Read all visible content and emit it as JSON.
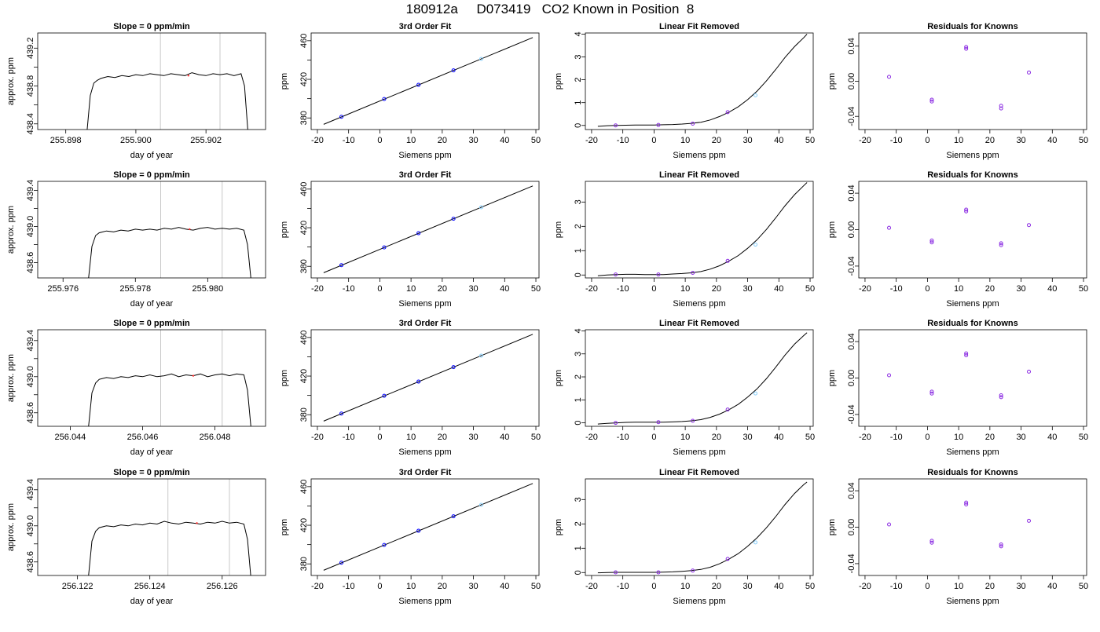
{
  "figure": {
    "title": "180912a     D073419   CO2 Known in Position  8"
  },
  "colors": {
    "axis": "#000000",
    "trace": "#000000",
    "window_marker": "#c8c8c8",
    "fit_line": "#000000",
    "known_point": "#0000ff",
    "residual_point": "#8a2be2",
    "highlight_point": "#87cefa",
    "accent_point": "#ff3333"
  },
  "chart_data": [
    {
      "type": "line",
      "row": 1,
      "panel": "trace",
      "title": "Slope =  0  ppm/min",
      "xlabel": "day of year",
      "ylabel": "approx. ppm",
      "xlim": [
        255.8972,
        255.9037
      ],
      "ylim": [
        438.34,
        439.36
      ],
      "xticks": [
        255.898,
        255.9,
        255.902
      ],
      "xtick_labels": [
        "255.898",
        "255.900",
        "255.902"
      ],
      "yticks": [
        438.4,
        438.6,
        438.8,
        439.0,
        439.2
      ],
      "ytick_labels": [
        "438.4",
        "",
        "438.8",
        "",
        "439.2"
      ],
      "markers": [
        255.9007,
        255.9024
      ],
      "accent_x": 255.9015,
      "x": [
        255.8986,
        255.8987,
        255.8988,
        255.8989,
        255.899,
        255.8992,
        255.8994,
        255.8996,
        255.8998,
        255.9,
        255.9002,
        255.9004,
        255.9006,
        255.9008,
        255.901,
        255.9012,
        255.9014,
        255.9016,
        255.9018,
        255.902,
        255.9022,
        255.9024,
        255.9026,
        255.9028,
        255.903,
        255.9031,
        255.9032
      ],
      "y": [
        438.3,
        438.7,
        438.83,
        438.86,
        438.88,
        438.9,
        438.89,
        438.91,
        438.9,
        438.92,
        438.91,
        438.93,
        438.92,
        438.91,
        438.93,
        438.92,
        438.91,
        438.94,
        438.92,
        438.91,
        438.93,
        438.92,
        438.93,
        438.91,
        438.93,
        438.8,
        438.3
      ]
    },
    {
      "type": "scatter",
      "row": 1,
      "panel": "fit",
      "title": "3rd Order Fit",
      "xlabel": "Siemens ppm",
      "ylabel": "ppm",
      "xlim": [
        -22,
        51
      ],
      "ylim": [
        368,
        468
      ],
      "xticks": [
        -20,
        -10,
        0,
        10,
        20,
        30,
        40,
        50
      ],
      "yticks": [
        380,
        400,
        420,
        440,
        460
      ],
      "ytick_labels": [
        "380",
        "",
        "420",
        "",
        "460"
      ],
      "line_x": [
        -18,
        49
      ],
      "line_y": [
        373.4,
        463.3
      ],
      "x": [
        -12.3,
        1.4,
        12.4,
        23.6,
        32.5
      ],
      "y": [
        381.2,
        399.6,
        414.3,
        429.3,
        441.2
      ],
      "highlight": [
        4
      ]
    },
    {
      "type": "scatter",
      "row": 1,
      "panel": "linear-removed",
      "title": "Linear Fit Removed",
      "xlabel": "Siemens ppm",
      "ylabel": "ppm",
      "xlim": [
        -22,
        51
      ],
      "ylim": [
        -0.18,
        4.05
      ],
      "xticks": [
        -20,
        -10,
        0,
        10,
        20,
        30,
        40,
        50
      ],
      "yticks": [
        0,
        1,
        2,
        3,
        4
      ],
      "curve_x": [
        -18,
        -15,
        -12,
        -9,
        -6,
        -3,
        0,
        3,
        6,
        9,
        12,
        15,
        18,
        21,
        24,
        27,
        30,
        33,
        36,
        39,
        42,
        45,
        48,
        49
      ],
      "curve_y": [
        -0.04,
        -0.01,
        0.0,
        0.01,
        0.02,
        0.02,
        0.02,
        0.03,
        0.04,
        0.06,
        0.09,
        0.14,
        0.24,
        0.39,
        0.58,
        0.82,
        1.13,
        1.5,
        1.95,
        2.45,
        2.98,
        3.45,
        3.85,
        4.0
      ],
      "x": [
        -12.3,
        1.4,
        12.4,
        23.6,
        32.5
      ],
      "y": [
        0.0,
        0.02,
        0.08,
        0.58,
        1.32
      ],
      "highlight": [
        4
      ]
    },
    {
      "type": "scatter",
      "row": 1,
      "panel": "residuals",
      "title": "Residuals for Knowns",
      "xlabel": "Siemens ppm",
      "ylabel": "ppm",
      "xlim": [
        -22,
        51
      ],
      "ylim": [
        -0.055,
        0.055
      ],
      "xticks": [
        -20,
        -10,
        0,
        10,
        20,
        30,
        40,
        50
      ],
      "yticks": [
        -0.04,
        0.0,
        0.04
      ],
      "ytick_labels": [
        "-0.04",
        "0.00",
        "0.04"
      ],
      "x": [
        -12.3,
        1.4,
        1.4,
        12.4,
        12.4,
        23.6,
        23.6,
        32.5
      ],
      "y": [
        0.005,
        -0.021,
        -0.023,
        0.039,
        0.037,
        -0.028,
        -0.031,
        0.01
      ]
    },
    {
      "type": "line",
      "row": 2,
      "panel": "trace",
      "title": "Slope =  0  ppm/min",
      "xlabel": "day of year",
      "ylabel": "approx. ppm",
      "xlim": [
        255.9753,
        255.9816
      ],
      "ylim": [
        438.43,
        439.5
      ],
      "xticks": [
        255.976,
        255.978,
        255.98
      ],
      "xtick_labels": [
        "255.976",
        "255.978",
        "255.980"
      ],
      "yticks": [
        438.6,
        438.8,
        439.0,
        439.2,
        439.4
      ],
      "ytick_labels": [
        "438.6",
        "",
        "439.0",
        "",
        "439.4"
      ],
      "markers": [
        255.9787,
        255.9804
      ],
      "accent_x": 255.9795,
      "x": [
        255.9767,
        255.9768,
        255.9769,
        255.977,
        255.9772,
        255.9774,
        255.9776,
        255.9778,
        255.978,
        255.9782,
        255.9784,
        255.9786,
        255.9788,
        255.979,
        255.9792,
        255.9794,
        255.9796,
        255.9798,
        255.98,
        255.9802,
        255.9804,
        255.9806,
        255.9808,
        255.981,
        255.9811,
        255.9812
      ],
      "y": [
        438.4,
        438.78,
        438.9,
        438.93,
        438.95,
        438.94,
        438.96,
        438.95,
        438.97,
        438.96,
        438.97,
        438.96,
        438.98,
        438.97,
        438.99,
        438.97,
        438.96,
        438.98,
        438.99,
        438.97,
        438.98,
        438.97,
        438.98,
        438.96,
        438.8,
        438.4
      ]
    },
    {
      "type": "scatter",
      "row": 2,
      "panel": "fit",
      "title": "3rd Order Fit",
      "xlabel": "Siemens ppm",
      "ylabel": "ppm",
      "xlim": [
        -22,
        51
      ],
      "ylim": [
        368,
        468
      ],
      "xticks": [
        -20,
        -10,
        0,
        10,
        20,
        30,
        40,
        50
      ],
      "yticks": [
        380,
        400,
        420,
        440,
        460
      ],
      "ytick_labels": [
        "380",
        "",
        "420",
        "",
        "460"
      ],
      "line_x": [
        -18,
        49
      ],
      "line_y": [
        373.4,
        463.3
      ],
      "x": [
        -12.3,
        1.4,
        12.4,
        23.6,
        32.5
      ],
      "y": [
        381.2,
        399.6,
        414.3,
        429.3,
        441.2
      ],
      "highlight": [
        4
      ]
    },
    {
      "type": "scatter",
      "row": 2,
      "panel": "linear-removed",
      "title": "Linear Fit Removed",
      "xlabel": "Siemens ppm",
      "ylabel": "ppm",
      "xlim": [
        -22,
        51
      ],
      "ylim": [
        -0.12,
        3.85
      ],
      "xticks": [
        -20,
        -10,
        0,
        10,
        20,
        30,
        40,
        50
      ],
      "yticks": [
        0,
        1,
        2,
        3
      ],
      "curve_x": [
        -18,
        -15,
        -12,
        -9,
        -6,
        -3,
        0,
        3,
        6,
        9,
        12,
        15,
        18,
        21,
        24,
        27,
        30,
        33,
        36,
        39,
        42,
        45,
        48,
        49
      ],
      "curve_y": [
        -0.03,
        0.0,
        0.02,
        0.03,
        0.03,
        0.02,
        0.02,
        0.02,
        0.04,
        0.06,
        0.09,
        0.14,
        0.24,
        0.38,
        0.57,
        0.8,
        1.1,
        1.45,
        1.87,
        2.35,
        2.85,
        3.3,
        3.68,
        3.8
      ],
      "x": [
        -12.3,
        1.4,
        12.4,
        23.6,
        32.5
      ],
      "y": [
        0.02,
        0.02,
        0.09,
        0.58,
        1.25
      ],
      "highlight": [
        4
      ]
    },
    {
      "type": "scatter",
      "row": 2,
      "panel": "residuals",
      "title": "Residuals for Knowns",
      "xlabel": "Siemens ppm",
      "ylabel": "ppm",
      "xlim": [
        -22,
        51
      ],
      "ylim": [
        -0.053,
        0.053
      ],
      "xticks": [
        -20,
        -10,
        0,
        10,
        20,
        30,
        40,
        50
      ],
      "yticks": [
        -0.04,
        0.0,
        0.04
      ],
      "ytick_labels": [
        "-0.04",
        "0.00",
        "0.04"
      ],
      "x": [
        -12.3,
        1.4,
        1.4,
        12.4,
        12.4,
        23.6,
        23.6,
        32.5
      ],
      "y": [
        0.002,
        -0.012,
        -0.014,
        0.022,
        0.02,
        -0.015,
        -0.017,
        0.005
      ]
    },
    {
      "type": "line",
      "row": 3,
      "panel": "trace",
      "title": "Slope =  0  ppm/min",
      "xlabel": "day of year",
      "ylabel": "approx. ppm",
      "xlim": [
        256.0431,
        256.0494
      ],
      "ylim": [
        438.45,
        439.52
      ],
      "xticks": [
        256.044,
        256.046,
        256.048
      ],
      "xtick_labels": [
        "256.044",
        "256.046",
        "256.048"
      ],
      "yticks": [
        438.6,
        438.8,
        439.0,
        439.2,
        439.4
      ],
      "ytick_labels": [
        "438.6",
        "",
        "439.0",
        "",
        "439.4"
      ],
      "markers": [
        256.0465,
        256.0482
      ],
      "accent_x": 256.0474,
      "x": [
        256.0445,
        256.0446,
        256.0447,
        256.0448,
        256.045,
        256.0452,
        256.0454,
        256.0456,
        256.0458,
        256.046,
        256.0462,
        256.0464,
        256.0466,
        256.0468,
        256.047,
        256.0472,
        256.0474,
        256.0476,
        256.0478,
        256.048,
        256.0482,
        256.0484,
        256.0486,
        256.0488,
        256.0489,
        256.049
      ],
      "y": [
        438.42,
        438.82,
        438.93,
        438.97,
        438.99,
        438.98,
        439.0,
        438.99,
        439.01,
        439.0,
        439.02,
        439.0,
        439.01,
        439.03,
        439.0,
        439.02,
        439.01,
        439.03,
        439.0,
        439.02,
        439.03,
        439.01,
        439.03,
        439.02,
        438.85,
        438.42
      ]
    },
    {
      "type": "scatter",
      "row": 3,
      "panel": "fit",
      "title": "3rd Order Fit",
      "xlabel": "Siemens ppm",
      "ylabel": "ppm",
      "xlim": [
        -22,
        51
      ],
      "ylim": [
        368,
        468
      ],
      "xticks": [
        -20,
        -10,
        0,
        10,
        20,
        30,
        40,
        50
      ],
      "yticks": [
        380,
        400,
        420,
        440,
        460
      ],
      "ytick_labels": [
        "380",
        "",
        "420",
        "",
        "460"
      ],
      "line_x": [
        -18,
        49
      ],
      "line_y": [
        373.4,
        463.3
      ],
      "x": [
        -12.3,
        1.4,
        12.4,
        23.6,
        32.5
      ],
      "y": [
        381.2,
        399.6,
        414.3,
        429.3,
        441.2
      ],
      "highlight": [
        4
      ]
    },
    {
      "type": "scatter",
      "row": 3,
      "panel": "linear-removed",
      "title": "Linear Fit Removed",
      "xlabel": "Siemens ppm",
      "ylabel": "ppm",
      "xlim": [
        -22,
        51
      ],
      "ylim": [
        -0.15,
        4.05
      ],
      "xticks": [
        -20,
        -10,
        0,
        10,
        20,
        30,
        40,
        50
      ],
      "yticks": [
        0,
        1,
        2,
        3,
        4
      ],
      "curve_x": [
        -18,
        -15,
        -12,
        -9,
        -6,
        -3,
        0,
        3,
        6,
        9,
        12,
        15,
        18,
        21,
        24,
        27,
        30,
        33,
        36,
        39,
        42,
        45,
        48,
        49
      ],
      "curve_y": [
        -0.05,
        -0.02,
        0.0,
        0.02,
        0.03,
        0.03,
        0.03,
        0.03,
        0.04,
        0.06,
        0.09,
        0.14,
        0.24,
        0.38,
        0.57,
        0.81,
        1.12,
        1.48,
        1.92,
        2.42,
        2.95,
        3.42,
        3.8,
        3.92
      ],
      "x": [
        -12.3,
        1.4,
        12.4,
        23.6,
        32.5
      ],
      "y": [
        0.0,
        0.03,
        0.09,
        0.58,
        1.28
      ],
      "highlight": [
        4
      ]
    },
    {
      "type": "scatter",
      "row": 3,
      "panel": "residuals",
      "title": "Residuals for Knowns",
      "xlabel": "Siemens ppm",
      "ylabel": "ppm",
      "xlim": [
        -22,
        51
      ],
      "ylim": [
        -0.053,
        0.053
      ],
      "xticks": [
        -20,
        -10,
        0,
        10,
        20,
        30,
        40,
        50
      ],
      "yticks": [
        -0.04,
        0.0,
        0.04
      ],
      "ytick_labels": [
        "-0.04",
        "0.00",
        "0.04"
      ],
      "x": [
        -12.3,
        1.4,
        1.4,
        12.4,
        12.4,
        23.6,
        23.6,
        32.5
      ],
      "y": [
        0.003,
        -0.015,
        -0.017,
        0.027,
        0.025,
        -0.019,
        -0.021,
        0.007
      ]
    },
    {
      "type": "line",
      "row": 4,
      "panel": "trace",
      "title": "Slope =  0  ppm/min",
      "xlabel": "day of year",
      "ylabel": "approx. ppm",
      "xlim": [
        256.1209,
        256.1272
      ],
      "ylim": [
        438.45,
        439.52
      ],
      "xticks": [
        256.122,
        256.124,
        256.126
      ],
      "xtick_labels": [
        "256.122",
        "256.124",
        "256.126"
      ],
      "yticks": [
        438.6,
        438.8,
        439.0,
        439.2,
        439.4
      ],
      "ytick_labels": [
        "438.6",
        "",
        "439.0",
        "",
        "439.4"
      ],
      "markers": [
        256.1245,
        256.1262
      ],
      "accent_x": 256.1253,
      "x": [
        256.1223,
        256.1224,
        256.1225,
        256.1226,
        256.1228,
        256.123,
        256.1232,
        256.1234,
        256.1236,
        256.1238,
        256.124,
        256.1242,
        256.1244,
        256.1246,
        256.1248,
        256.125,
        256.1252,
        256.1254,
        256.1256,
        256.1258,
        256.126,
        256.1262,
        256.1264,
        256.1266,
        256.1267,
        256.1268
      ],
      "y": [
        438.42,
        438.83,
        438.94,
        438.98,
        439.0,
        438.99,
        439.01,
        439.0,
        439.02,
        439.01,
        439.03,
        439.02,
        439.05,
        439.03,
        439.02,
        439.04,
        439.03,
        439.02,
        439.04,
        439.03,
        439.05,
        439.03,
        439.04,
        439.02,
        438.85,
        438.4
      ]
    },
    {
      "type": "scatter",
      "row": 4,
      "panel": "fit",
      "title": "3rd Order Fit",
      "xlabel": "Siemens ppm",
      "ylabel": "ppm",
      "xlim": [
        -22,
        51
      ],
      "ylim": [
        368,
        468
      ],
      "xticks": [
        -20,
        -10,
        0,
        10,
        20,
        30,
        40,
        50
      ],
      "yticks": [
        380,
        400,
        420,
        440,
        460
      ],
      "ytick_labels": [
        "380",
        "",
        "420",
        "",
        "460"
      ],
      "line_x": [
        -18,
        49
      ],
      "line_y": [
        373.4,
        463.3
      ],
      "x": [
        -12.3,
        1.4,
        12.4,
        23.6,
        32.5
      ],
      "y": [
        381.2,
        399.6,
        414.3,
        429.3,
        441.2
      ],
      "highlight": [
        4
      ]
    },
    {
      "type": "scatter",
      "row": 4,
      "panel": "linear-removed",
      "title": "Linear Fit Removed",
      "xlabel": "Siemens ppm",
      "ylabel": "ppm",
      "xlim": [
        -22,
        51
      ],
      "ylim": [
        -0.12,
        3.85
      ],
      "xticks": [
        -20,
        -10,
        0,
        10,
        20,
        30,
        40,
        50
      ],
      "yticks": [
        0,
        1,
        2,
        3
      ],
      "curve_x": [
        -18,
        -15,
        -12,
        -9,
        -6,
        -3,
        0,
        3,
        6,
        9,
        12,
        15,
        18,
        21,
        24,
        27,
        30,
        33,
        36,
        39,
        42,
        45,
        48,
        49
      ],
      "curve_y": [
        -0.01,
        0.0,
        0.01,
        0.01,
        0.01,
        0.01,
        0.01,
        0.02,
        0.03,
        0.05,
        0.08,
        0.13,
        0.22,
        0.36,
        0.55,
        0.78,
        1.08,
        1.43,
        1.84,
        2.3,
        2.8,
        3.25,
        3.62,
        3.72
      ],
      "x": [
        -12.3,
        1.4,
        12.4,
        23.6,
        32.5
      ],
      "y": [
        0.01,
        0.01,
        0.08,
        0.56,
        1.24
      ],
      "highlight": [
        4
      ]
    },
    {
      "type": "scatter",
      "row": 4,
      "panel": "residuals",
      "title": "Residuals for Knowns",
      "xlabel": "Siemens ppm",
      "ylabel": "ppm",
      "xlim": [
        -22,
        51
      ],
      "ylim": [
        -0.053,
        0.053
      ],
      "xticks": [
        -20,
        -10,
        0,
        10,
        20,
        30,
        40,
        50
      ],
      "yticks": [
        -0.04,
        0.0,
        0.04
      ],
      "ytick_labels": [
        "-0.04",
        "0.00",
        "0.04"
      ],
      "x": [
        -12.3,
        1.4,
        1.4,
        12.4,
        12.4,
        23.6,
        23.6,
        32.5
      ],
      "y": [
        0.003,
        -0.015,
        -0.017,
        0.027,
        0.025,
        -0.019,
        -0.021,
        0.007
      ]
    }
  ]
}
